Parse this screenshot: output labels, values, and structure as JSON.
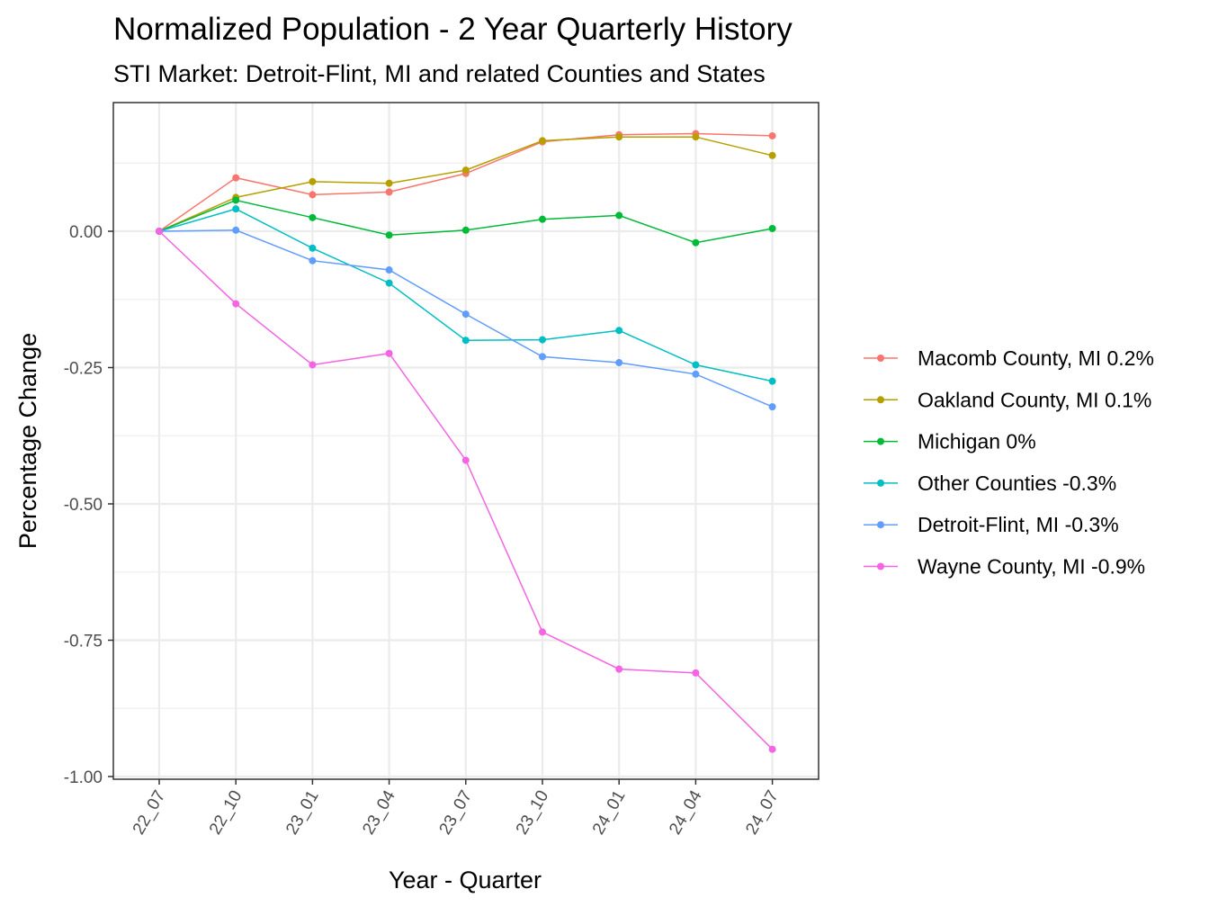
{
  "chart_data": {
    "type": "line",
    "title": "Normalized Population - 2 Year Quarterly History",
    "subtitle": "STI Market: Detroit-Flint, MI and related Counties and States",
    "xlabel": "Year - Quarter",
    "ylabel": "Percentage Change",
    "categories": [
      "22_07",
      "22_10",
      "23_01",
      "23_04",
      "23_07",
      "23_10",
      "24_01",
      "24_04",
      "24_07"
    ],
    "ylim": [
      -1.0,
      0.2
    ],
    "yticks": [
      -1.0,
      -0.75,
      -0.5,
      -0.25,
      0.0
    ],
    "ytick_labels": [
      "-1.00",
      "-0.75",
      "-0.50",
      "-0.25",
      "0.00"
    ],
    "grid": true,
    "legend_position": "right",
    "series": [
      {
        "name": "Macomb County, MI 0.2%",
        "color": "#F8766D",
        "values": [
          0.0,
          0.098,
          0.067,
          0.072,
          0.106,
          0.164,
          0.177,
          0.179,
          0.175
        ]
      },
      {
        "name": "Oakland County, MI 0.1%",
        "color": "#B79F00",
        "values": [
          0.0,
          0.062,
          0.091,
          0.088,
          0.112,
          0.166,
          0.173,
          0.173,
          0.139
        ]
      },
      {
        "name": "Michigan 0%",
        "color": "#00BA38",
        "values": [
          0.0,
          0.057,
          0.025,
          -0.007,
          0.002,
          0.022,
          0.029,
          -0.021,
          0.005
        ]
      },
      {
        "name": "Other Counties -0.3%",
        "color": "#00BFC4",
        "values": [
          0.0,
          0.041,
          -0.031,
          -0.095,
          -0.2,
          -0.199,
          -0.182,
          -0.245,
          -0.275
        ]
      },
      {
        "name": "Detroit-Flint, MI -0.3%",
        "color": "#619CFF",
        "values": [
          0.0,
          0.002,
          -0.054,
          -0.071,
          -0.152,
          -0.23,
          -0.241,
          -0.262,
          -0.322
        ]
      },
      {
        "name": "Wayne County, MI -0.9%",
        "color": "#F564E3",
        "values": [
          0.0,
          -0.133,
          -0.245,
          -0.224,
          -0.42,
          -0.735,
          -0.803,
          -0.81,
          -0.95
        ]
      }
    ]
  }
}
